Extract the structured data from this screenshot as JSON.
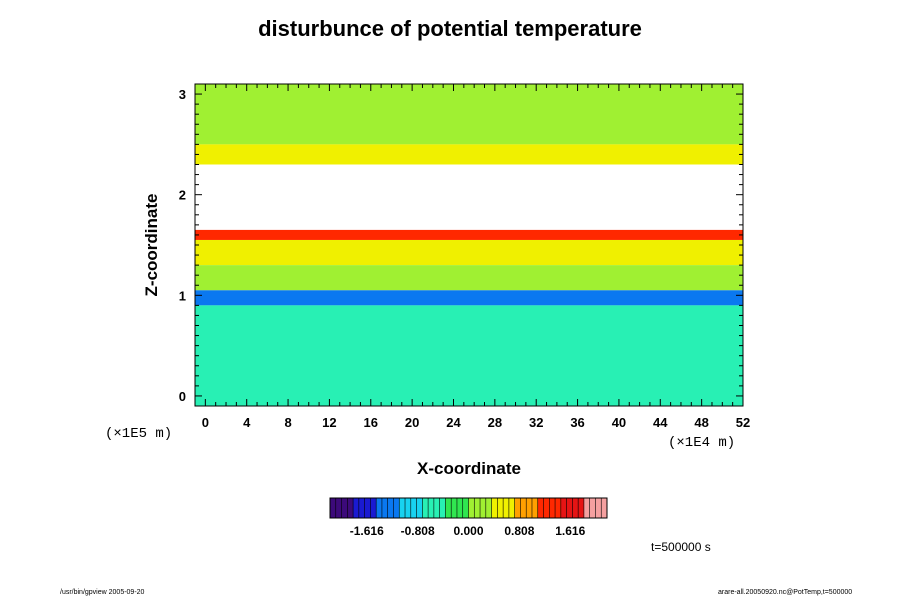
{
  "chart_data": {
    "type": "heatmap",
    "title": "disturbunce of potential temperature",
    "xlabel": "X-coordinate",
    "ylabel": "Z-coordinate",
    "x_unit": "(×1E4 m)",
    "y_unit": "(×1E5 m)",
    "xlim": [
      -1,
      52
    ],
    "ylim": [
      -0.1,
      3.1
    ],
    "x_ticks": [
      0,
      4,
      8,
      12,
      16,
      20,
      24,
      28,
      32,
      36,
      40,
      44,
      48,
      52
    ],
    "y_ticks": [
      0,
      1,
      2,
      3
    ],
    "colorbar": {
      "min": -2.2,
      "max": 2.2,
      "tick_values": [
        -1.616,
        -0.808,
        0.0,
        0.808,
        1.616
      ],
      "tick_labels": [
        "-1.616",
        "-0.808",
        "0.000",
        "0.808",
        "1.616"
      ],
      "colors": [
        "#3c0a7a",
        "#1a1ad2",
        "#0a78f0",
        "#18d2f0",
        "#28f0b4",
        "#30e650",
        "#a0f032",
        "#f0f000",
        "#ffa000",
        "#ff2800",
        "#e61414",
        "#f5a0a0"
      ]
    },
    "bands": [
      {
        "z_min": 2.5,
        "z_max": 3.1,
        "value": 0.1
      },
      {
        "z_min": 2.3,
        "z_max": 2.5,
        "value": 0.6
      },
      {
        "z_min": 1.65,
        "z_max": 2.3,
        "value": "out-of-range"
      },
      {
        "z_min": 1.55,
        "z_max": 1.65,
        "value": 1.4
      },
      {
        "z_min": 1.3,
        "z_max": 1.55,
        "value": 0.5
      },
      {
        "z_min": 1.05,
        "z_max": 1.3,
        "value": 0.1
      },
      {
        "z_min": 0.9,
        "z_max": 1.05,
        "value": -1.2
      },
      {
        "z_min": -0.1,
        "z_max": 0.9,
        "value": -0.55
      }
    ],
    "time_label": "t=500000 s"
  },
  "footer": {
    "left": "/usr/bin/gpview 2005-09-20",
    "right": "arare-all.20050920.nc@PotTemp,t=500000"
  }
}
